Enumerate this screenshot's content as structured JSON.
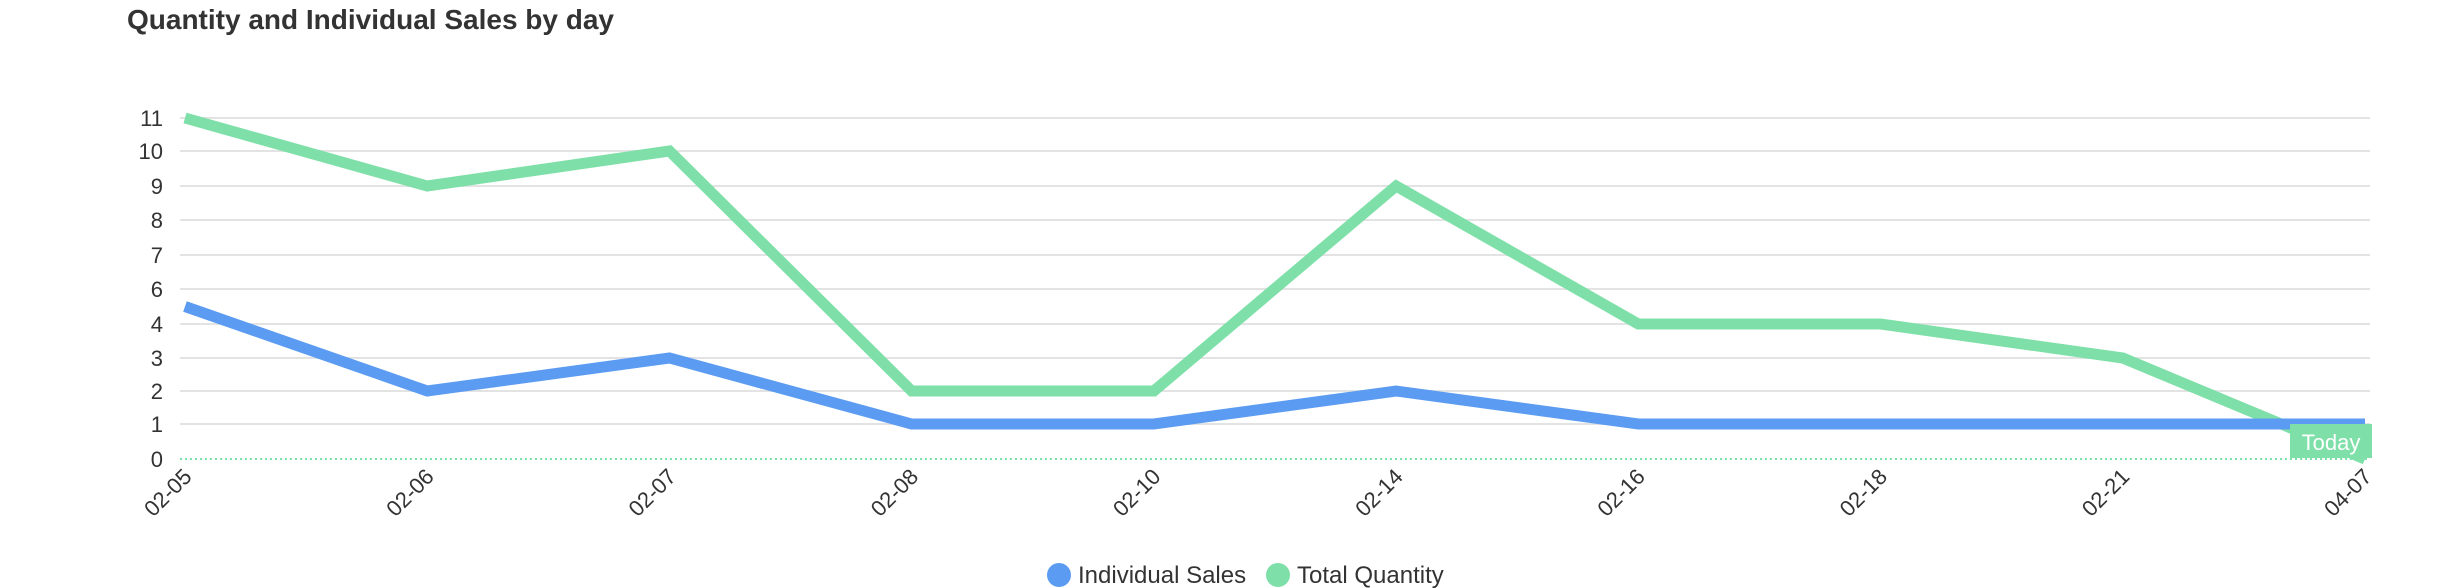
{
  "chart_data": {
    "type": "line",
    "title": "Quantity and Individual Sales by day",
    "categories": [
      "02-05",
      "02-06",
      "02-07",
      "02-08",
      "02-10",
      "02-14",
      "02-16",
      "02-18",
      "02-21",
      "04-07"
    ],
    "y_ticks": [
      0,
      1,
      2,
      3,
      4,
      6,
      7,
      8,
      9,
      10,
      11
    ],
    "series": [
      {
        "name": "Individual Sales",
        "color": "#5b9cf2",
        "values": [
          5,
          2,
          3,
          1,
          1,
          2,
          1,
          1,
          1,
          1
        ]
      },
      {
        "name": "Total Quantity",
        "color": "#7ee0a8",
        "values": [
          11,
          9,
          10,
          2,
          2,
          9,
          4,
          4,
          3,
          0
        ]
      }
    ],
    "annotation": {
      "label": "Today",
      "at": "04-07",
      "color": "#7ee0a8"
    },
    "grid": true,
    "legend": "bottom-center"
  }
}
